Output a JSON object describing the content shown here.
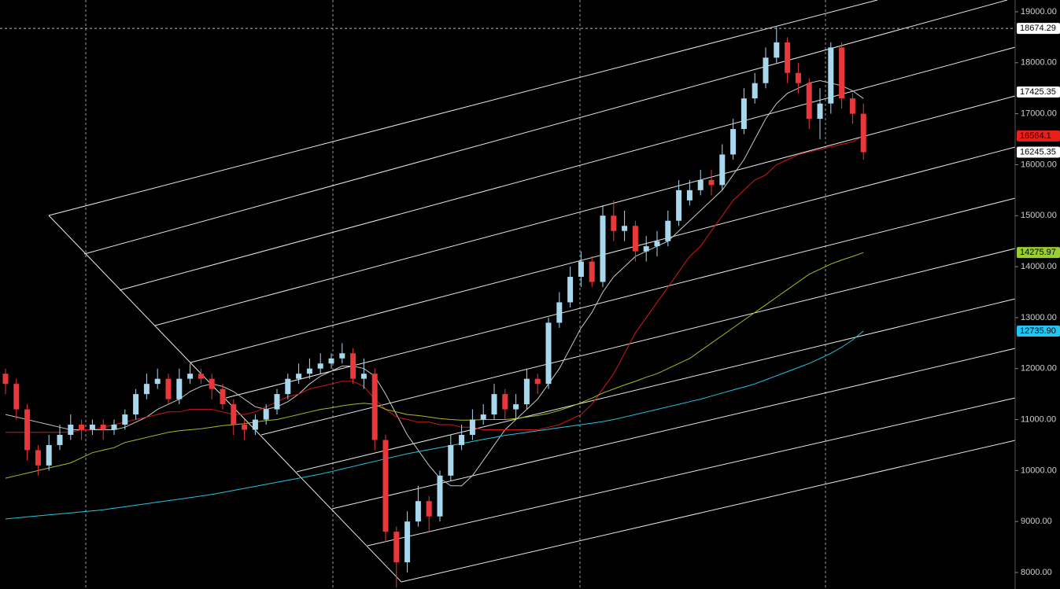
{
  "chart_data": {
    "type": "candlestick",
    "ylim": [
      7676,
      19231
    ],
    "yticks": [
      {
        "value": 8000,
        "label": "8000.00"
      },
      {
        "value": 9000,
        "label": "9000.00"
      },
      {
        "value": 10000,
        "label": "10000.00"
      },
      {
        "value": 11000,
        "label": "11000.00"
      },
      {
        "value": 12000,
        "label": "12000.00"
      },
      {
        "value": 13000,
        "label": "13000.00"
      },
      {
        "value": 14000,
        "label": "14000.00"
      },
      {
        "value": 15000,
        "label": "15000.00"
      },
      {
        "value": 16000,
        "label": "16000.00"
      },
      {
        "value": 17000,
        "label": "17000.00"
      },
      {
        "value": 18000,
        "label": "18000.00"
      },
      {
        "value": 19000,
        "label": "19000.00"
      }
    ],
    "up_color": "#a8d8ee",
    "down_color": "#e8383a",
    "open": [
      11900,
      11700,
      11200,
      10400,
      10100,
      10500,
      10700,
      10900,
      10800,
      10900,
      10800,
      10900,
      11100,
      11500,
      11700,
      11800,
      11400,
      11800,
      11900,
      11800,
      11600,
      11300,
      10900,
      10800,
      11000,
      11200,
      11500,
      11800,
      11900,
      12000,
      12100,
      12200,
      12300,
      11800,
      11900,
      10600,
      8800,
      8200,
      9000,
      9400,
      9100,
      9900,
      10500,
      10700,
      11000,
      11100,
      11500,
      11200,
      11300,
      11800,
      11700,
      12900,
      13300,
      13800,
      14100,
      13700,
      15000,
      14700,
      14800,
      14300,
      14400,
      14500,
      14900,
      15300,
      15500,
      15700,
      15600,
      16200,
      16700,
      17300,
      17600,
      18100,
      18400,
      17800,
      17600,
      16900,
      17200,
      18300,
      17300,
      17000
    ],
    "high": [
      12000,
      11800,
      11300,
      10500,
      10700,
      10900,
      11100,
      11000,
      11000,
      11000,
      11000,
      11200,
      11600,
      11900,
      12000,
      11900,
      12000,
      12100,
      12000,
      11900,
      11700,
      11400,
      11000,
      11100,
      11300,
      11600,
      11900,
      12100,
      12200,
      12300,
      12300,
      12500,
      12400,
      12200,
      12000,
      10700,
      8900,
      9200,
      9700,
      9500,
      10000,
      10700,
      10900,
      11200,
      11300,
      11700,
      11600,
      11500,
      12000,
      11900,
      13000,
      13500,
      14000,
      14300,
      14200,
      15200,
      15300,
      15100,
      14900,
      14600,
      14700,
      15100,
      15700,
      15700,
      15900,
      15900,
      16400,
      16900,
      17500,
      17800,
      18300,
      18700,
      18500,
      18000,
      17700,
      17500,
      18400,
      18400,
      17400,
      17200
    ],
    "low": [
      11500,
      11000,
      10200,
      9900,
      10000,
      10400,
      10600,
      10600,
      10700,
      10600,
      10700,
      10800,
      11000,
      11400,
      11600,
      11300,
      11300,
      11700,
      11700,
      11400,
      11200,
      10700,
      10600,
      10700,
      10900,
      11100,
      11400,
      11700,
      11800,
      11900,
      12000,
      12100,
      11700,
      11600,
      10400,
      8600,
      7700,
      8000,
      8900,
      8800,
      9000,
      9800,
      10400,
      10600,
      10900,
      11000,
      11000,
      11000,
      11200,
      11500,
      11600,
      12800,
      13200,
      13600,
      13600,
      13600,
      14500,
      14500,
      14100,
      14100,
      14200,
      14400,
      14800,
      15200,
      15400,
      15400,
      15500,
      16100,
      16600,
      17200,
      17500,
      18000,
      17600,
      17400,
      16700,
      16500,
      17000,
      17100,
      16800,
      16100
    ],
    "close": [
      11700,
      11200,
      10400,
      10100,
      10500,
      10700,
      10900,
      10800,
      10900,
      10800,
      10900,
      11100,
      11500,
      11700,
      11800,
      11400,
      11800,
      11900,
      11800,
      11600,
      11300,
      10900,
      10800,
      11000,
      11200,
      11500,
      11800,
      11900,
      12000,
      12100,
      12200,
      12300,
      11800,
      11900,
      10600,
      8800,
      8200,
      9000,
      9400,
      9100,
      9900,
      10500,
      10700,
      11000,
      11100,
      11500,
      11200,
      11300,
      11800,
      11700,
      12900,
      13300,
      13800,
      14100,
      13700,
      15000,
      14700,
      14800,
      14300,
      14400,
      14500,
      14900,
      15500,
      15500,
      15700,
      15600,
      16200,
      16700,
      17300,
      17600,
      18100,
      18400,
      17800,
      17600,
      16900,
      17200,
      18300,
      17300,
      17000,
      16245.35
    ],
    "series": [
      {
        "color": "#c8c8c8",
        "values": [
          11100,
          11050,
          11000,
          10950,
          10900,
          10850,
          10800,
          10800,
          10800,
          10800,
          10800,
          10850,
          10950,
          11050,
          11200,
          11300,
          11400,
          11550,
          11650,
          11700,
          11650,
          11550,
          11400,
          11250,
          11200,
          11250,
          11350,
          11500,
          11700,
          11850,
          11950,
          12050,
          12050,
          12000,
          11850,
          11500,
          11100,
          10700,
          10400,
          10100,
          9850,
          9700,
          9700,
          9900,
          10200,
          10500,
          10800,
          11000,
          11200,
          11400,
          11700,
          12000,
          12400,
          12800,
          13100,
          13500,
          13800,
          14000,
          14200,
          14300,
          14400,
          14500,
          14700,
          14900,
          15100,
          15300,
          15500,
          15800,
          16100,
          16500,
          16900,
          17200,
          17400,
          17500,
          17600,
          17650,
          17600,
          17550,
          17450,
          17300
        ]
      },
      {
        "color": "#d01818",
        "values": [
          10750,
          10750,
          10750,
          10750,
          10750,
          10750,
          10750,
          10800,
          10800,
          10850,
          10900,
          10950,
          11000,
          11050,
          11100,
          11150,
          11150,
          11200,
          11200,
          11200,
          11150,
          11100,
          11100,
          11150,
          11250,
          11350,
          11450,
          11500,
          11600,
          11650,
          11700,
          11750,
          11750,
          11650,
          11400,
          11200,
          11050,
          11000,
          10950,
          10950,
          10900,
          10900,
          10850,
          10850,
          10800,
          10800,
          10800,
          10800,
          10800,
          10800,
          10850,
          10900,
          11000,
          11100,
          11300,
          11600,
          11900,
          12300,
          12700,
          13000,
          13300,
          13600,
          13900,
          14200,
          14400,
          14700,
          15000,
          15300,
          15500,
          15700,
          15800,
          16000,
          16100,
          16200,
          16250,
          16300,
          16350,
          16400,
          16450,
          16564.1
        ]
      },
      {
        "color": "#aabc22",
        "values": [
          9850,
          9900,
          9950,
          10000,
          10050,
          10100,
          10150,
          10250,
          10350,
          10400,
          10450,
          10550,
          10600,
          10650,
          10700,
          10750,
          10780,
          10800,
          10820,
          10850,
          10880,
          10900,
          10920,
          10950,
          10980,
          11000,
          11050,
          11100,
          11150,
          11200,
          11230,
          11270,
          11300,
          11320,
          11300,
          11200,
          11150,
          11100,
          11080,
          11050,
          11020,
          11000,
          10990,
          10990,
          11000,
          11000,
          11000,
          11020,
          11050,
          11080,
          11120,
          11180,
          11250,
          11330,
          11420,
          11520,
          11600,
          11680,
          11750,
          11830,
          11900,
          12000,
          12100,
          12200,
          12350,
          12500,
          12650,
          12800,
          12950,
          13100,
          13250,
          13400,
          13550,
          13700,
          13850,
          13950,
          14050,
          14130,
          14200,
          14275.97
        ]
      },
      {
        "color": "#26c4e0",
        "values": [
          9050,
          9070,
          9090,
          9110,
          9130,
          9150,
          9170,
          9190,
          9210,
          9230,
          9260,
          9290,
          9320,
          9350,
          9380,
          9410,
          9440,
          9470,
          9500,
          9530,
          9570,
          9610,
          9650,
          9690,
          9730,
          9770,
          9810,
          9850,
          9890,
          9930,
          9980,
          10030,
          10080,
          10130,
          10180,
          10230,
          10280,
          10330,
          10370,
          10410,
          10450,
          10490,
          10530,
          10570,
          10610,
          10650,
          10690,
          10720,
          10750,
          10780,
          10810,
          10840,
          10870,
          10900,
          10930,
          10960,
          11000,
          11050,
          11100,
          11150,
          11200,
          11250,
          11300,
          11350,
          11400,
          11460,
          11520,
          11580,
          11640,
          11700,
          11780,
          11860,
          11940,
          12020,
          12100,
          12200,
          12300,
          12420,
          12560,
          12735.9
        ]
      }
    ],
    "price_labels": [
      {
        "value": 18674.29,
        "label": "18674.29",
        "color": "#ffffff",
        "text_color": "#000000",
        "dashed_line": true
      },
      {
        "value": 17425.35,
        "label": "17425.35",
        "color": "#ffffff",
        "text_color": "#000000"
      },
      {
        "value": 16564.1,
        "label": "16564.1",
        "color": "#e8201c",
        "text_color": "#000000"
      },
      {
        "value": 16245.35,
        "label": "16245.35",
        "color": "#ffffff",
        "text_color": "#000000"
      },
      {
        "value": 14275.97,
        "label": "14275.97",
        "color": "#9acd32",
        "text_color": "#000000"
      },
      {
        "value": 12735.9,
        "label": "12735.90",
        "color": "#22c4f0",
        "text_color": "#000000"
      }
    ]
  }
}
